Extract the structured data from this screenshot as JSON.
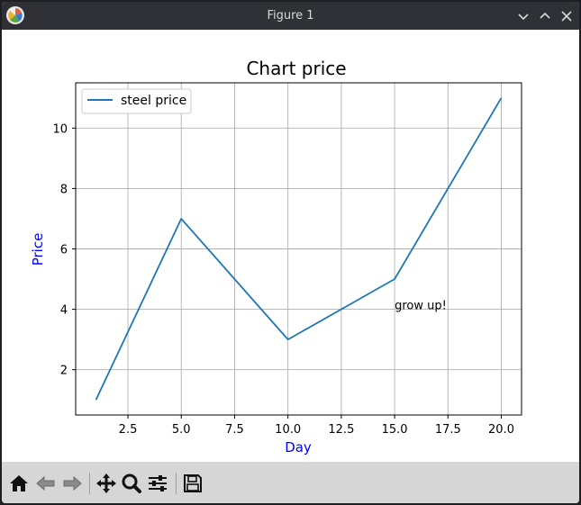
{
  "window": {
    "title": "Figure 1",
    "controls": [
      "minimize-icon",
      "maximize-icon",
      "close-icon"
    ]
  },
  "toolbar": {
    "buttons": [
      {
        "name": "home-icon",
        "action": "Home"
      },
      {
        "name": "back-icon",
        "action": "Back"
      },
      {
        "name": "forward-icon",
        "action": "Forward"
      },
      {
        "name": "pan-icon",
        "action": "Pan"
      },
      {
        "name": "zoom-icon",
        "action": "Zoom"
      },
      {
        "name": "configure-subplots-icon",
        "action": "Subplots"
      },
      {
        "name": "save-icon",
        "action": "Save"
      }
    ]
  },
  "colors": {
    "line": "#1f77b4",
    "axis_label": "#0000ff",
    "grid": "#b0b0b0",
    "titlebar": "#2f3136",
    "toolbar": "#d6d6d6"
  },
  "chart_data": {
    "type": "line",
    "title": "Chart price",
    "xlabel": "Day",
    "ylabel": "Price",
    "xlim": [
      0.05,
      20.95
    ],
    "ylim": [
      0.5,
      11.5
    ],
    "xticks": [
      2.5,
      5.0,
      7.5,
      10.0,
      12.5,
      15.0,
      17.5,
      20.0
    ],
    "xtick_labels": [
      "2.5",
      "5.0",
      "7.5",
      "10.0",
      "12.5",
      "15.0",
      "17.5",
      "20.0"
    ],
    "yticks": [
      2,
      4,
      6,
      8,
      10
    ],
    "ytick_labels": [
      "2",
      "4",
      "6",
      "8",
      "10"
    ],
    "grid": true,
    "legend_position": "upper-left",
    "series": [
      {
        "name": "steel price",
        "x": [
          1,
          5,
          10,
          15,
          20
        ],
        "y": [
          1,
          7,
          3,
          5,
          11
        ]
      }
    ],
    "annotations": [
      {
        "text": "grow up!",
        "x": 15,
        "y": 4
      }
    ]
  }
}
